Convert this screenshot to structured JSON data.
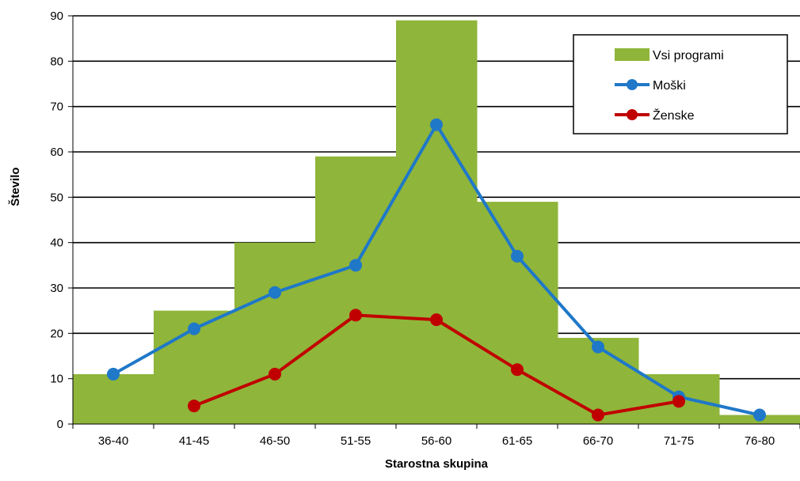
{
  "chart_data": {
    "type": "bar",
    "categories": [
      "36-40",
      "41-45",
      "46-50",
      "51-55",
      "56-60",
      "61-65",
      "66-70",
      "71-75",
      "76-80"
    ],
    "xlabel": "Starostna skupina",
    "ylabel": "Število",
    "ylim": [
      0,
      90
    ],
    "yticks": [
      0,
      10,
      20,
      30,
      40,
      50,
      60,
      70,
      80,
      90
    ],
    "grid": true,
    "legend": "top-right",
    "series": [
      {
        "name": "Vsi programi",
        "kind": "bar",
        "color": "#8FB53A",
        "values": [
          11,
          25,
          40,
          59,
          89,
          49,
          19,
          11,
          2
        ]
      },
      {
        "name": "Moški",
        "kind": "line",
        "color": "#1F78C8",
        "values": [
          11,
          21,
          29,
          35,
          66,
          37,
          17,
          6,
          2
        ]
      },
      {
        "name": "Ženske",
        "kind": "line",
        "color": "#C00000",
        "values": [
          null,
          4,
          11,
          24,
          23,
          12,
          2,
          5,
          null
        ]
      }
    ]
  }
}
